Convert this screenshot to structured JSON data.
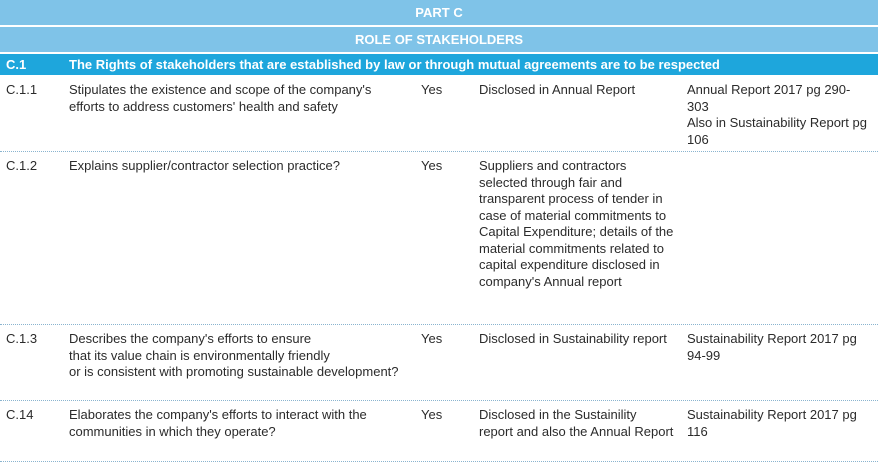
{
  "header": {
    "part": "PART C",
    "section_title": "ROLE OF STAKEHOLDERS"
  },
  "section": {
    "id": "C.1",
    "text": "The Rights of stakeholders that are established by law or through mutual agreements are to be respected"
  },
  "rows": [
    {
      "id": "C.1.1",
      "description": "Stipulates the existence and scope of the company's efforts to address customers' health and safety",
      "answer": "Yes",
      "compliance": "Disclosed in Annual Report",
      "reference": "Annual Report 2017 pg 290-303\nAlso in Sustainability Report pg 106"
    },
    {
      "id": "C.1.2",
      "description": "Explains supplier/contractor selection practice?",
      "answer": "Yes",
      "compliance": "Suppliers and contractors selected through fair and transparent process of tender in case of material commitments to Capital Expenditure; details of the material commitments related to capital expenditure disclosed in company's Annual report",
      "reference": ""
    },
    {
      "id": "C.1.3",
      "description": "Describes the company's efforts to ensure\nthat its value chain is environmentally friendly\nor is consistent with promoting sustainable development?",
      "answer": "Yes",
      "compliance": "Disclosed in Sustainability report",
      "reference": "Sustainability Report 2017 pg 94-99"
    },
    {
      "id": "C.14",
      "description": "Elaborates the company's efforts to interact with the communities in which they operate?",
      "answer": "Yes",
      "compliance": "Disclosed in the Sustainility report and also the Annual Report",
      "reference": "Sustainability Report 2017 pg 116"
    }
  ]
}
